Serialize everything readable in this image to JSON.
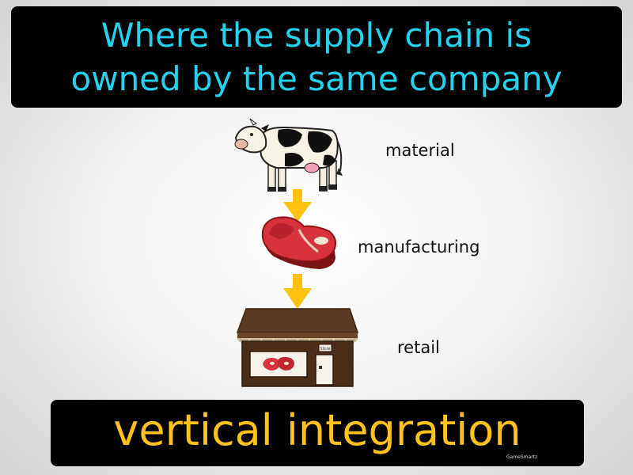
{
  "definition": {
    "line1": "Where the supply chain is",
    "line2": "owned by the same company"
  },
  "term": "vertical integration",
  "brand": "GameSmartz",
  "stages": [
    {
      "label": "material",
      "icon": "cow-icon"
    },
    {
      "label": "manufacturing",
      "icon": "steak-icon"
    },
    {
      "label": "retail",
      "icon": "storefront-icon"
    }
  ],
  "shop_sign": "Store",
  "colors": {
    "definition_text": "#22d3f0",
    "term_text": "#ffc21a",
    "arrow": "#ffc20e",
    "panel_bg": "#000000"
  }
}
